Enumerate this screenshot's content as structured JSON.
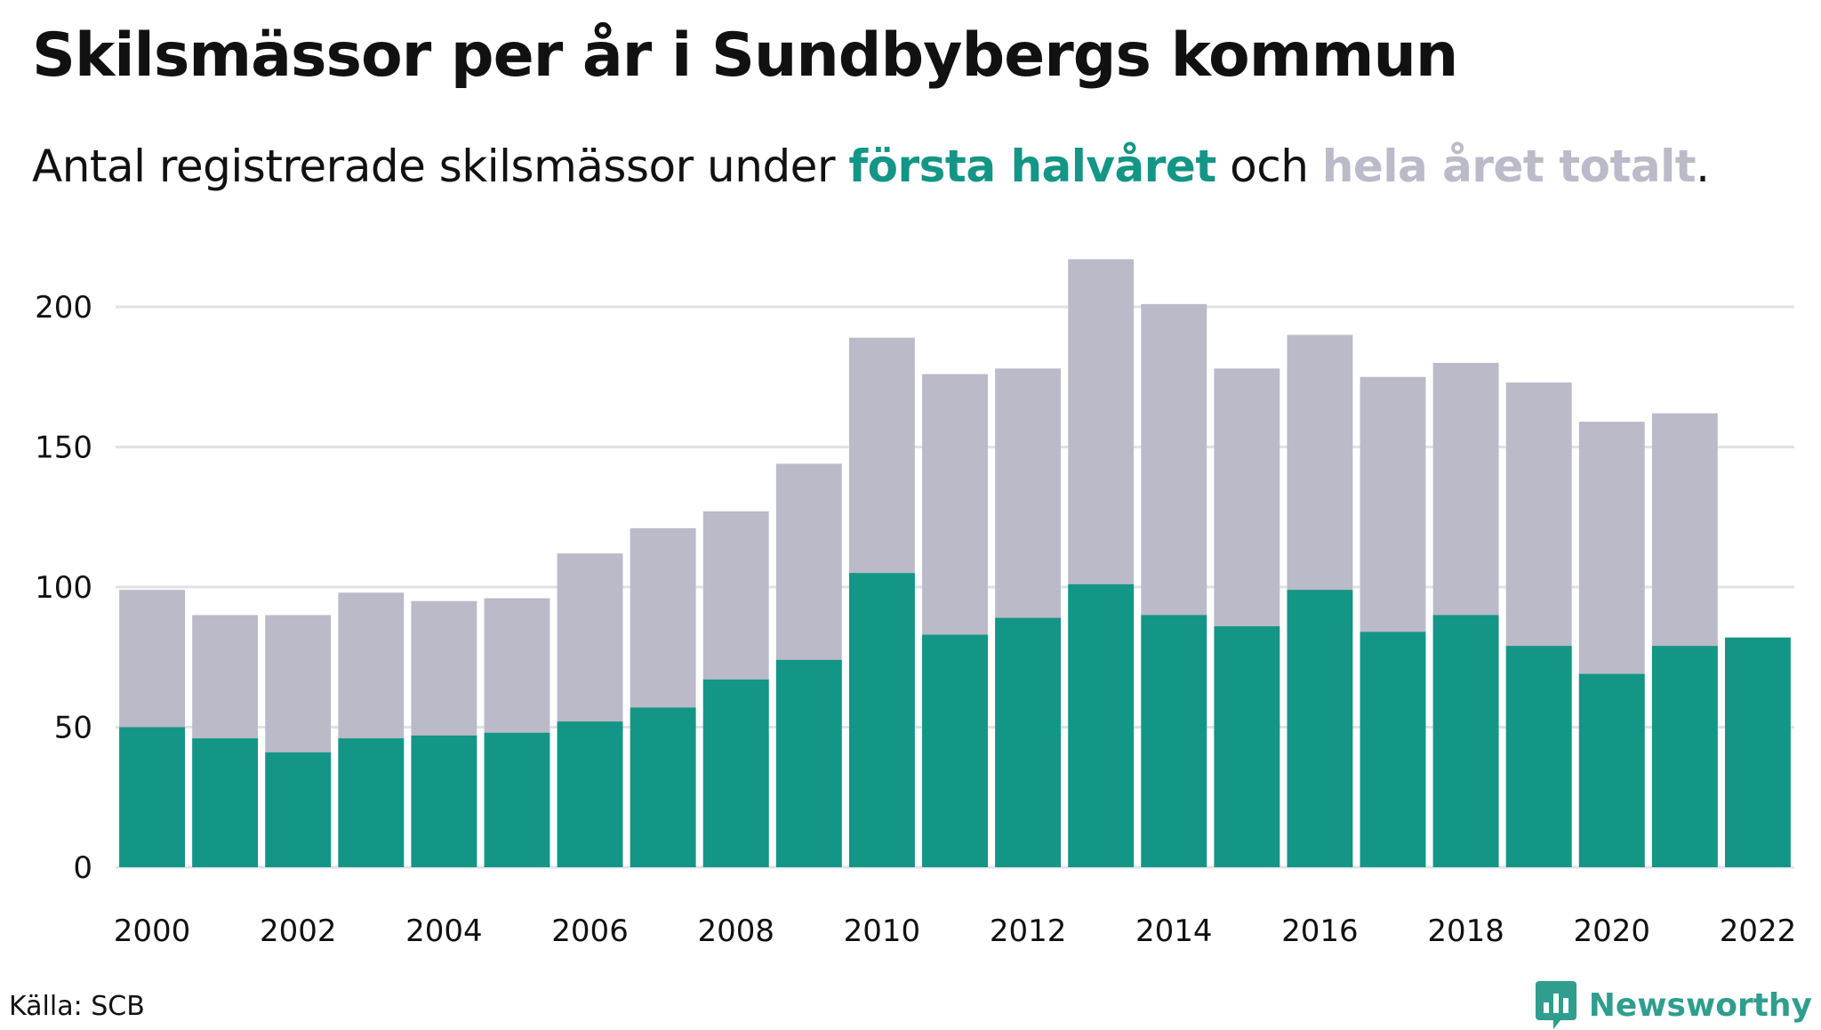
{
  "header": {
    "title": "Skilsmässor per år i Sundbybergs kommun",
    "subtitle_pre": "Antal registrerade skilsmässor under ",
    "subtitle_first": "första halvåret",
    "subtitle_mid": " och ",
    "subtitle_total": "hela året totalt",
    "subtitle_end": "."
  },
  "footer": {
    "source": "Källa: SCB",
    "brand": "Newsworthy"
  },
  "colors": {
    "first_half": "#139685",
    "total": "#bbbac8",
    "grid": "#e2e1e6",
    "axis_text": "#111111",
    "brand": "#2f9e8e"
  },
  "icons": {
    "brand_logo": "bar-chart-speech-bubble-icon"
  },
  "chart_data": {
    "type": "bar",
    "stacking": "overlay",
    "categories": [
      "2000",
      "2001",
      "2002",
      "2003",
      "2004",
      "2005",
      "2006",
      "2007",
      "2008",
      "2009",
      "2010",
      "2011",
      "2012",
      "2013",
      "2014",
      "2015",
      "2016",
      "2017",
      "2018",
      "2019",
      "2020",
      "2021",
      "2022"
    ],
    "x_tick_labels": [
      "2000",
      "2002",
      "2004",
      "2006",
      "2008",
      "2010",
      "2012",
      "2014",
      "2016",
      "2018",
      "2020",
      "2022"
    ],
    "series": [
      {
        "name": "hela året totalt",
        "values": [
          99,
          90,
          90,
          98,
          95,
          96,
          112,
          121,
          127,
          144,
          189,
          176,
          178,
          217,
          201,
          178,
          190,
          175,
          180,
          173,
          159,
          162,
          null
        ]
      },
      {
        "name": "första halvåret",
        "values": [
          50,
          46,
          41,
          46,
          47,
          48,
          52,
          57,
          67,
          74,
          105,
          83,
          89,
          101,
          90,
          86,
          99,
          84,
          90,
          79,
          69,
          79,
          82
        ]
      }
    ],
    "y_ticks": [
      0,
      50,
      100,
      150,
      200
    ],
    "ylim": [
      0,
      225
    ],
    "grid": true,
    "title": "Skilsmässor per år i Sundbybergs kommun",
    "xlabel": "",
    "ylabel": ""
  }
}
